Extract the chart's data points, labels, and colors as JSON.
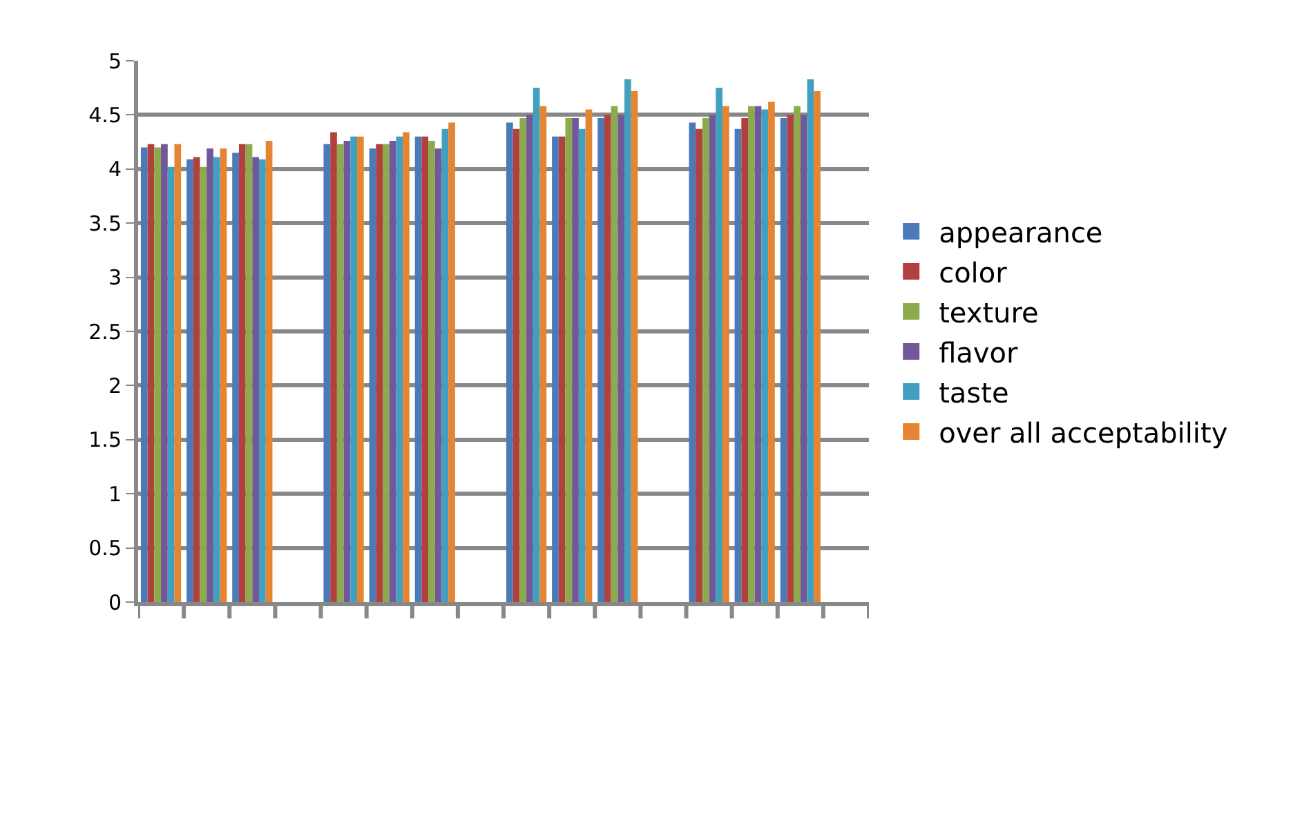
{
  "chart_data": {
    "type": "bar",
    "categories": [
      null,
      null,
      null,
      null,
      null,
      null,
      null,
      null,
      null,
      null,
      null,
      null,
      null,
      null,
      null,
      null
    ],
    "series": [
      {
        "name": "appearance",
        "color": "#4a7ab8",
        "values": [
          4.2,
          4.09,
          4.15,
          null,
          4.23,
          4.19,
          4.3,
          null,
          4.43,
          4.3,
          4.47,
          null,
          4.43,
          4.37,
          4.47,
          null
        ]
      },
      {
        "name": "color",
        "color": "#b0413e",
        "values": [
          4.23,
          4.11,
          4.23,
          null,
          4.34,
          4.23,
          4.3,
          null,
          4.37,
          4.3,
          4.5,
          null,
          4.37,
          4.47,
          4.5,
          null
        ]
      },
      {
        "name": "texture",
        "color": "#8bab4c",
        "values": [
          4.2,
          4.02,
          4.23,
          null,
          4.23,
          4.23,
          4.26,
          null,
          4.47,
          4.47,
          4.58,
          null,
          4.47,
          4.58,
          4.58,
          null
        ]
      },
      {
        "name": "flavor",
        "color": "#71589a",
        "values": [
          4.23,
          4.19,
          4.11,
          null,
          4.26,
          4.26,
          4.19,
          null,
          4.5,
          4.47,
          4.5,
          null,
          4.5,
          4.58,
          4.5,
          null
        ]
      },
      {
        "name": "taste",
        "color": "#41a0bf",
        "values": [
          4.02,
          4.11,
          4.09,
          null,
          4.3,
          4.3,
          4.37,
          null,
          4.75,
          4.37,
          4.83,
          null,
          4.75,
          4.55,
          4.83,
          null
        ]
      },
      {
        "name": "over all acceptability",
        "color": "#e58431",
        "values": [
          4.23,
          4.19,
          4.26,
          null,
          4.3,
          4.34,
          4.43,
          null,
          4.58,
          4.55,
          4.72,
          null,
          4.58,
          4.62,
          4.72,
          null
        ]
      }
    ],
    "ylim": [
      0,
      5
    ],
    "yticks": [
      0,
      0.5,
      1,
      1.5,
      2,
      2.5,
      3,
      3.5,
      4,
      4.5,
      5
    ],
    "grid": "y",
    "legend": "right"
  }
}
